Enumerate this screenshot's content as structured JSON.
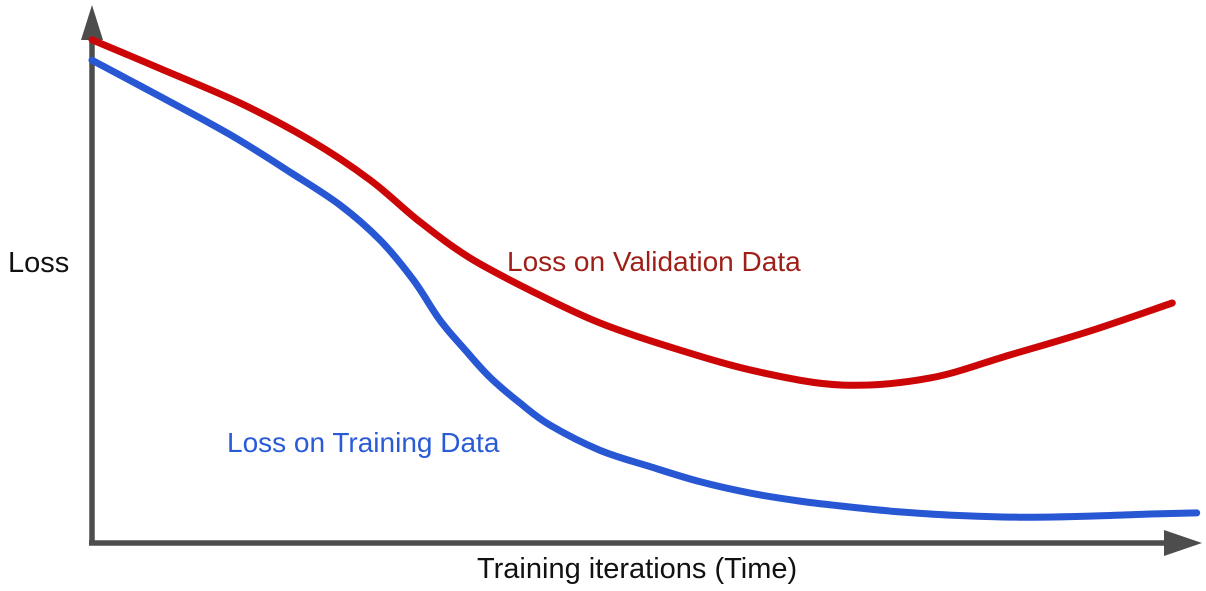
{
  "background_color": "#ffffff",
  "chart_data": {
    "type": "line",
    "title": "",
    "xlabel": "Training iterations (Time)",
    "ylabel": "Loss",
    "grid": false,
    "legend_position": "inline-labels-on-curves",
    "axis_color": "#4d4d4d",
    "axes": {
      "x": {
        "has_arrow": true,
        "tick_labels": "none"
      },
      "y": {
        "has_arrow": true,
        "tick_labels": "none"
      }
    },
    "x_range_normalized": [
      0,
      1
    ],
    "y_range_normalized": [
      0,
      1
    ],
    "series": [
      {
        "name": "validation-loss",
        "label": "Loss on Validation Data",
        "color": "#cc0606",
        "label_color": "#9e1f17",
        "shape_note": "decreases then rises after minimum near x=0.68 (overfitting)",
        "points": [
          [
            0.0,
            0.937
          ],
          [
            0.061,
            0.884
          ],
          [
            0.134,
            0.819
          ],
          [
            0.197,
            0.75
          ],
          [
            0.251,
            0.676
          ],
          [
            0.296,
            0.598
          ],
          [
            0.341,
            0.531
          ],
          [
            0.395,
            0.471
          ],
          [
            0.458,
            0.41
          ],
          [
            0.531,
            0.359
          ],
          [
            0.603,
            0.318
          ],
          [
            0.678,
            0.294
          ],
          [
            0.756,
            0.307
          ],
          [
            0.828,
            0.35
          ],
          [
            0.901,
            0.395
          ],
          [
            0.975,
            0.447
          ]
        ]
      },
      {
        "name": "training-loss",
        "label": "Loss on Training Data",
        "color": "#2857d4",
        "label_color": "#2a5bd7",
        "shape_note": "decreases steeply then plateaus near zero",
        "points": [
          [
            0.0,
            0.899
          ],
          [
            0.061,
            0.832
          ],
          [
            0.125,
            0.76
          ],
          [
            0.18,
            0.689
          ],
          [
            0.224,
            0.629
          ],
          [
            0.26,
            0.564
          ],
          [
            0.29,
            0.49
          ],
          [
            0.314,
            0.415
          ],
          [
            0.337,
            0.359
          ],
          [
            0.359,
            0.309
          ],
          [
            0.386,
            0.261
          ],
          [
            0.413,
            0.22
          ],
          [
            0.458,
            0.173
          ],
          [
            0.504,
            0.142
          ],
          [
            0.549,
            0.114
          ],
          [
            0.594,
            0.093
          ],
          [
            0.639,
            0.078
          ],
          [
            0.684,
            0.067
          ],
          [
            0.729,
            0.058
          ],
          [
            0.774,
            0.052
          ],
          [
            0.837,
            0.048
          ],
          [
            0.901,
            0.05
          ],
          [
            0.955,
            0.054
          ],
          [
            0.997,
            0.056
          ]
        ]
      }
    ]
  }
}
